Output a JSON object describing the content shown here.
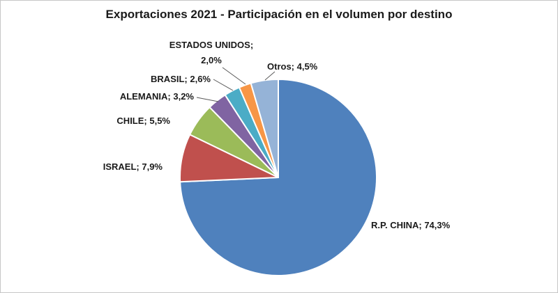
{
  "title": "Exportaciones 2021 - Participación en el volumen por destino",
  "chart_data": {
    "type": "pie",
    "title": "Exportaciones 2021 - Participación en el volumen por destino",
    "categories": [
      "R.P. CHINA",
      "ISRAEL",
      "CHILE",
      "ALEMANIA",
      "BRASIL",
      "ESTADOS UNIDOS",
      "Otros"
    ],
    "values": [
      74.3,
      7.9,
      5.5,
      3.2,
      2.6,
      2.0,
      4.5
    ],
    "labels": [
      "R.P. CHINA; 74,3%",
      "ISRAEL; 7,9%",
      "CHILE; 5,5%",
      "ALEMANIA; 3,2%",
      "BRASIL; 2,6%",
      "ESTADOS UNIDOS; 2,0%",
      "Otros; 4,5%"
    ],
    "colors": [
      "#4F81BD",
      "#C0504D",
      "#9BBB59",
      "#8064A2",
      "#4BACC6",
      "#F79646",
      "#95B3D7"
    ],
    "start_angle_deg": 0,
    "direction": "clockwise",
    "units": "percent",
    "legend": "none",
    "data_labels": "category_and_value"
  }
}
